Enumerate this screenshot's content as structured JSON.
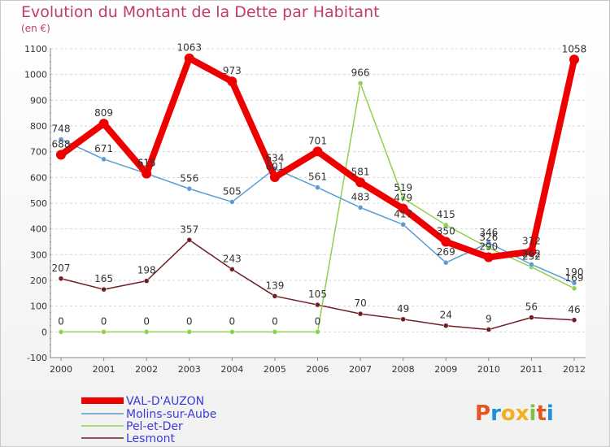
{
  "header": {
    "title": "Evolution du Montant de la Dette par Habitant",
    "subtitle": "(en €)"
  },
  "logo": {
    "text": "Proxiti",
    "letter_colors": [
      "#e4561f",
      "#1f8fd8",
      "#f0b020",
      "#f0b020",
      "#7cc243",
      "#e4561f",
      "#1f8fd8"
    ]
  },
  "chart_data": {
    "type": "line",
    "title": "Evolution du Montant de la Dette par Habitant",
    "ylabel": "(en €)",
    "xlabel": "",
    "x": [
      2000,
      2001,
      2002,
      2003,
      2004,
      2005,
      2006,
      2007,
      2008,
      2009,
      2010,
      2011,
      2012
    ],
    "ylim": [
      -100,
      1100
    ],
    "yticks": [
      -100,
      0,
      100,
      200,
      300,
      400,
      500,
      600,
      700,
      800,
      900,
      1000,
      1100
    ],
    "grid": "horizontal dashed",
    "legend_placement": "bottom-left",
    "series": [
      {
        "name": "VAL-D'AUZON",
        "color": "#ee0000",
        "values": [
          688,
          809,
          615,
          1063,
          973,
          601,
          701,
          581,
          479,
          350,
          290,
          312,
          1058
        ],
        "labels": [
          "688",
          "809",
          "615",
          "1063",
          "973",
          "601",
          "701",
          "581",
          "479",
          "350",
          "290",
          "312",
          "1058"
        ]
      },
      {
        "name": "Molins-sur-Aube",
        "color": "#5a9bd3",
        "values": [
          748,
          671,
          615,
          556,
          505,
          634,
          561,
          483,
          417,
          269,
          346,
          262,
          190
        ],
        "labels": [
          "748",
          "671",
          "615",
          "556",
          "505",
          "634",
          "561",
          "483",
          "417",
          "269",
          "346",
          "262",
          "190"
        ]
      },
      {
        "name": "Pel-et-Der",
        "color": "#8fd14f",
        "values": [
          0,
          0,
          0,
          0,
          0,
          0,
          0,
          966,
          519,
          415,
          326,
          252,
          169
        ],
        "labels": [
          "0",
          "0",
          "0",
          "0",
          "0",
          "0",
          "0",
          "966",
          "519",
          "415",
          "326",
          "252",
          "169"
        ]
      },
      {
        "name": "Lesmont",
        "color": "#6e1e24",
        "values": [
          207,
          165,
          198,
          357,
          243,
          139,
          105,
          70,
          49,
          24,
          9,
          56,
          46
        ],
        "labels": [
          "207",
          "165",
          "198",
          "357",
          "243",
          "139",
          "105",
          "70",
          "49",
          "24",
          "9",
          "56",
          "46"
        ]
      }
    ]
  }
}
